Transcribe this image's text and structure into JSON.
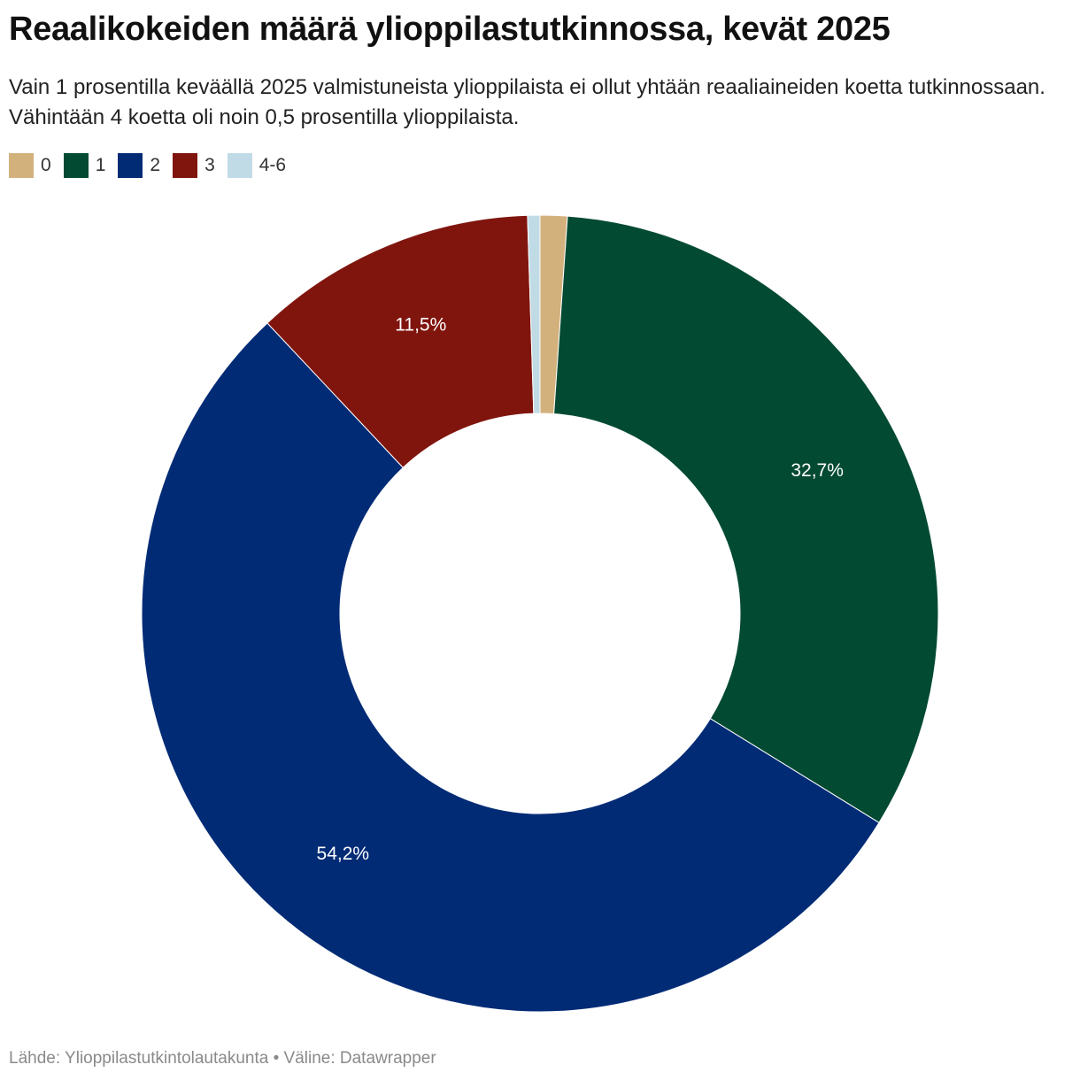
{
  "header": {
    "title": "Reaalikokeiden määrä ylioppilastutkinnossa, kevät 2025",
    "subtitle": "Vain 1 prosentilla keväällä 2025 valmistuneista ylioppilaista ei ollut yhtään reaaliaineiden koetta tutkinnossaan. Vähintään 4 koetta oli noin 0,5 prosentilla ylioppilaista."
  },
  "footer": {
    "text": "Lähde: Ylioppilastutkintolautakunta • Väline: Datawrapper"
  },
  "chart_data": {
    "type": "pie",
    "style": "donut",
    "title": "Reaalikokeiden määrä ylioppilastutkinnossa, kevät 2025",
    "legend_position": "top-left",
    "categories": [
      "0",
      "1",
      "2",
      "3",
      "4-6"
    ],
    "values": [
      1.1,
      32.7,
      54.2,
      11.5,
      0.5
    ],
    "colors": [
      "#d3b17d",
      "#034a32",
      "#022b76",
      "#80150e",
      "#c1dbe6"
    ],
    "data_labels": [
      "",
      "32,7%",
      "54,2%",
      "11,5%",
      ""
    ]
  }
}
